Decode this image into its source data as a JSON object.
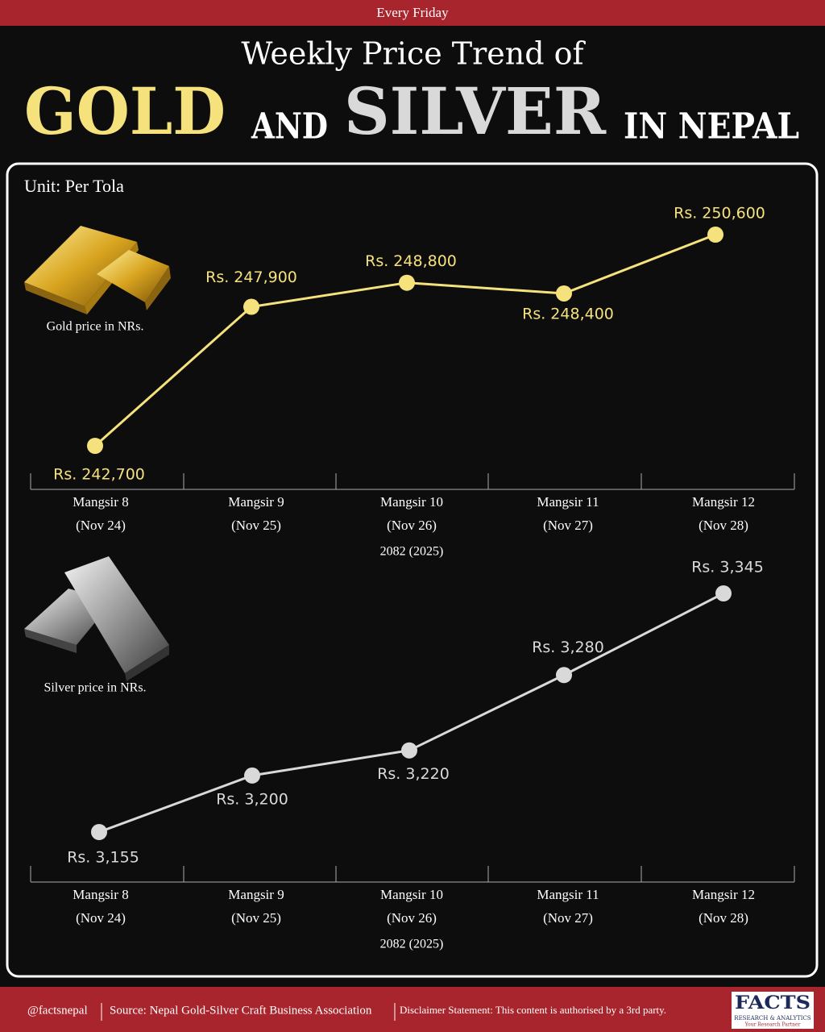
{
  "header": {
    "tag": "Every Friday",
    "subtitle": "Weekly Price Trend of",
    "gold": "GOLD",
    "and": "AND",
    "silver": "SILVER",
    "end": "IN NEPAL"
  },
  "unit": "Unit: Per Tola",
  "chart_data": [
    {
      "type": "line",
      "label": "Gold price in NRs.",
      "categories": [
        "Mangsir 8",
        "Mangsir 9",
        "Mangsir 10",
        "Mangsir 11",
        "Mangsir 12"
      ],
      "dates": [
        "(Nov 24)",
        "(Nov 25)",
        "(Nov 26)",
        "(Nov 27)",
        "(Nov 28)"
      ],
      "year": "2082 (2025)",
      "color": "#f6e27c",
      "values": [
        242700,
        247900,
        248800,
        248400,
        250600
      ],
      "value_labels": [
        "Rs. 242,700",
        "Rs. 247,900",
        "Rs. 248,800",
        "Rs. 248,400",
        "Rs. 250,600"
      ]
    },
    {
      "type": "line",
      "label": "Silver price in NRs.",
      "categories": [
        "Mangsir 8",
        "Mangsir 9",
        "Mangsir 10",
        "Mangsir 11",
        "Mangsir 12"
      ],
      "dates": [
        "(Nov 24)",
        "(Nov 25)",
        "(Nov 26)",
        "(Nov 27)",
        "(Nov 28)"
      ],
      "year": "2082 (2025)",
      "color": "#d9d9d9",
      "values": [
        3155,
        3200,
        3220,
        3280,
        3345
      ],
      "value_labels": [
        "Rs. 3,155",
        "Rs. 3,200",
        "Rs. 3,220",
        "Rs. 3,280",
        "Rs. 3,345"
      ]
    }
  ],
  "footer": {
    "handle": "@factsnepal",
    "source": "Source: Nepal Gold-Silver Craft Business Association",
    "disclaimer": "Disclaimer Statement: This content is authorised by a 3rd party.",
    "logo": "FACTS",
    "logo_sub": "RESEARCH & ANALYTICS",
    "logo_tag": "Your Research Partner"
  }
}
